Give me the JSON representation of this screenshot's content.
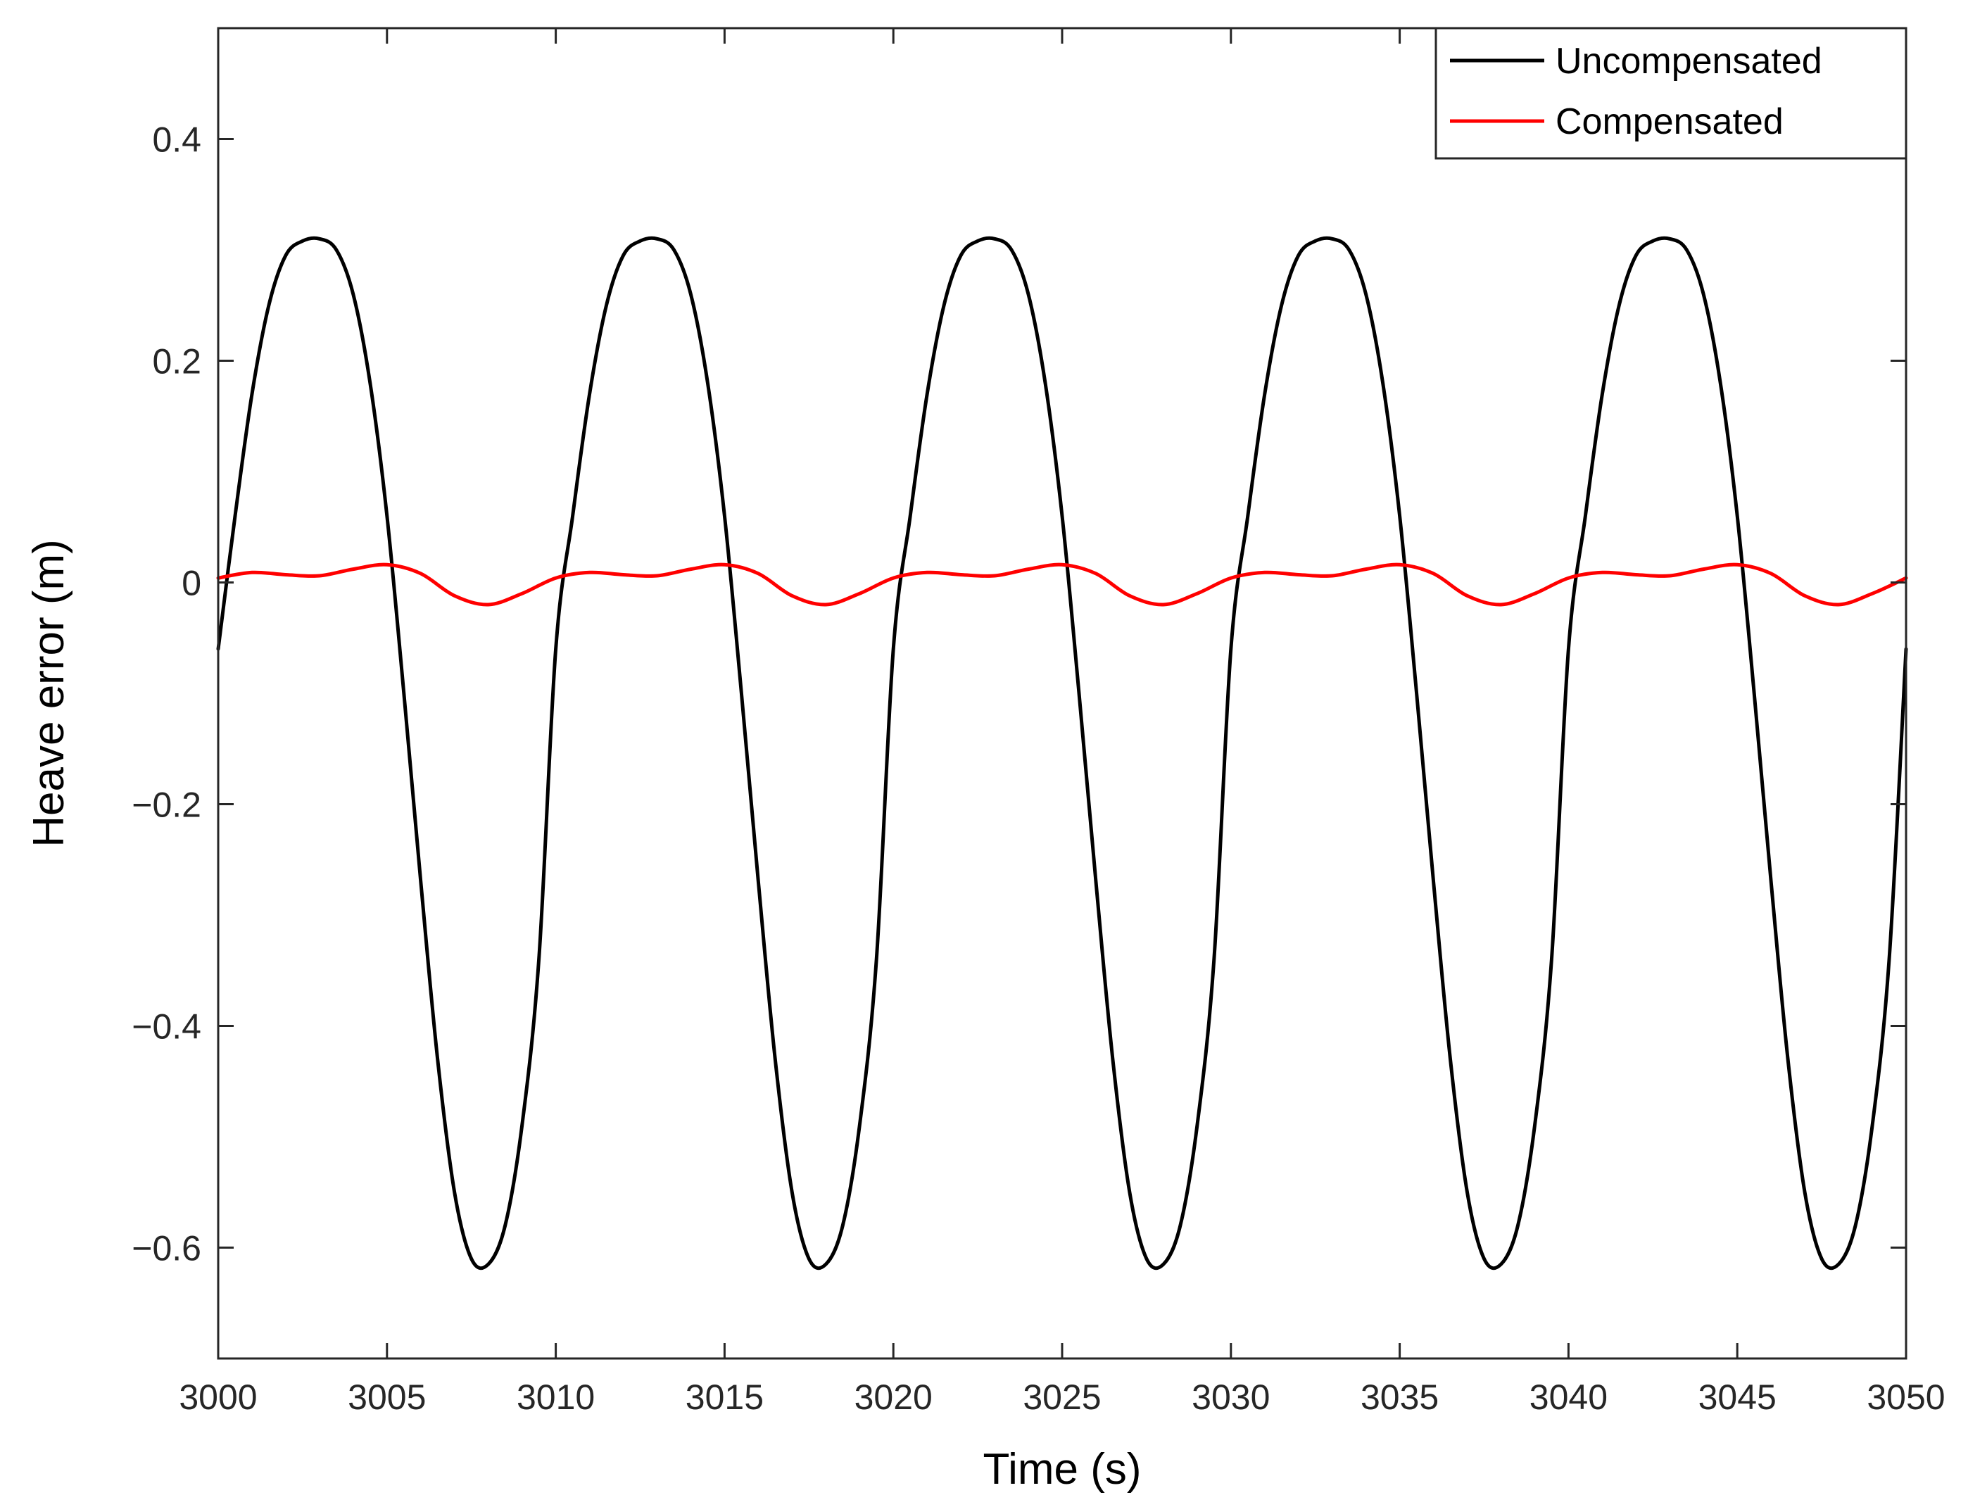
{
  "chart_data": {
    "type": "line",
    "xlabel": "Time (s)",
    "ylabel": "Heave error (m)",
    "xlim": [
      3000,
      3050
    ],
    "ylim": [
      -0.7,
      0.5
    ],
    "xticks": [
      3000,
      3005,
      3010,
      3015,
      3020,
      3025,
      3030,
      3035,
      3040,
      3045,
      3050
    ],
    "xtick_labels": [
      "3000",
      "3005",
      "3010",
      "3015",
      "3020",
      "3025",
      "3030",
      "3035",
      "3040",
      "3045",
      "3050"
    ],
    "yticks": [
      -0.6,
      -0.4,
      -0.2,
      0,
      0.2,
      0.4
    ],
    "ytick_labels": [
      "−0.6",
      "−0.4",
      "−0.2",
      "0",
      "0.2",
      "0.4"
    ],
    "grid": false,
    "legend_position": "top-right",
    "series": [
      {
        "name": "Uncompensated",
        "color": "#000000",
        "x": [
          3000,
          3000.5,
          3001,
          3001.5,
          3002,
          3002.5,
          3003,
          3003.5,
          3004,
          3004.5,
          3005,
          3005.5,
          3006,
          3006.5,
          3007,
          3007.5,
          3008,
          3008.5,
          3009,
          3009.5,
          3010,
          3010.5,
          3011,
          3011.5,
          3012,
          3012.5,
          3013,
          3013.5,
          3014,
          3014.5,
          3015,
          3015.5,
          3016,
          3016.5,
          3017,
          3017.5,
          3018,
          3018.5,
          3019,
          3019.5,
          3020,
          3020.5,
          3021,
          3021.5,
          3022,
          3022.5,
          3023,
          3023.5,
          3024,
          3024.5,
          3025,
          3025.5,
          3026,
          3026.5,
          3027,
          3027.5,
          3028,
          3028.5,
          3029,
          3029.5,
          3030,
          3030.5,
          3031,
          3031.5,
          3032,
          3032.5,
          3033,
          3033.5,
          3034,
          3034.5,
          3035,
          3035.5,
          3036,
          3036.5,
          3037,
          3037.5,
          3038,
          3038.5,
          3039,
          3039.5,
          3040,
          3040.5,
          3041,
          3041.5,
          3042,
          3042.5,
          3043,
          3043.5,
          3044,
          3044.5,
          3045,
          3045.5,
          3046,
          3046.5,
          3047,
          3047.5,
          3048,
          3048.5,
          3049,
          3049.5,
          3050
        ],
        "y": [
          -0.06,
          0.06,
          0.17,
          0.25,
          0.295,
          0.308,
          0.31,
          0.3,
          0.26,
          0.18,
          0.06,
          -0.1,
          -0.27,
          -0.43,
          -0.55,
          -0.61,
          -0.615,
          -0.58,
          -0.49,
          -0.34,
          -0.06,
          0.06,
          0.17,
          0.25,
          0.295,
          0.308,
          0.31,
          0.3,
          0.26,
          0.18,
          0.06,
          -0.1,
          -0.27,
          -0.43,
          -0.55,
          -0.61,
          -0.615,
          -0.58,
          -0.49,
          -0.34,
          -0.06,
          0.06,
          0.17,
          0.25,
          0.295,
          0.308,
          0.31,
          0.3,
          0.26,
          0.18,
          0.06,
          -0.1,
          -0.27,
          -0.43,
          -0.55,
          -0.61,
          -0.615,
          -0.58,
          -0.49,
          -0.34,
          -0.06,
          0.06,
          0.17,
          0.25,
          0.295,
          0.308,
          0.31,
          0.3,
          0.26,
          0.18,
          0.06,
          -0.1,
          -0.27,
          -0.43,
          -0.55,
          -0.61,
          -0.615,
          -0.58,
          -0.49,
          -0.34,
          -0.06,
          0.06,
          0.17,
          0.25,
          0.295,
          0.308,
          0.31,
          0.3,
          0.26,
          0.18,
          0.06,
          -0.1,
          -0.27,
          -0.43,
          -0.55,
          -0.61,
          -0.615,
          -0.58,
          -0.49,
          -0.34,
          -0.06
        ]
      },
      {
        "name": "Compensated",
        "color": "#ff0000",
        "x": [
          3000,
          3001,
          3002,
          3003,
          3004,
          3005,
          3006,
          3007,
          3008,
          3009,
          3010,
          3011,
          3012,
          3013,
          3014,
          3015,
          3016,
          3017,
          3018,
          3019,
          3020,
          3021,
          3022,
          3023,
          3024,
          3025,
          3026,
          3027,
          3028,
          3029,
          3030,
          3031,
          3032,
          3033,
          3034,
          3035,
          3036,
          3037,
          3038,
          3039,
          3040,
          3041,
          3042,
          3043,
          3044,
          3045,
          3046,
          3047,
          3048,
          3049,
          3050
        ],
        "y": [
          0.004,
          0.009,
          0.007,
          0.006,
          0.012,
          0.016,
          0.008,
          -0.012,
          -0.02,
          -0.01,
          0.004,
          0.009,
          0.007,
          0.006,
          0.012,
          0.016,
          0.008,
          -0.012,
          -0.02,
          -0.01,
          0.004,
          0.009,
          0.007,
          0.006,
          0.012,
          0.016,
          0.008,
          -0.012,
          -0.02,
          -0.01,
          0.004,
          0.009,
          0.007,
          0.006,
          0.012,
          0.016,
          0.008,
          -0.012,
          -0.02,
          -0.01,
          0.004,
          0.009,
          0.007,
          0.006,
          0.012,
          0.016,
          0.008,
          -0.012,
          -0.02,
          -0.01,
          0.004
        ]
      }
    ]
  }
}
